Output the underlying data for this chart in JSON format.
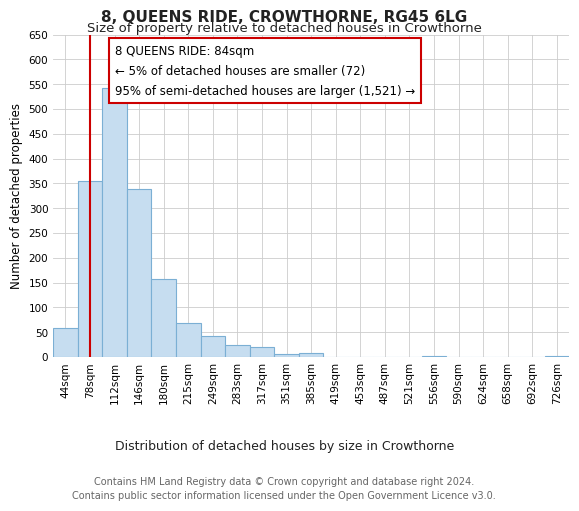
{
  "title": "8, QUEENS RIDE, CROWTHORNE, RG45 6LG",
  "subtitle": "Size of property relative to detached houses in Crowthorne",
  "xlabel": "Distribution of detached houses by size in Crowthorne",
  "ylabel": "Number of detached properties",
  "bar_labels": [
    "44sqm",
    "78sqm",
    "112sqm",
    "146sqm",
    "180sqm",
    "215sqm",
    "249sqm",
    "283sqm",
    "317sqm",
    "351sqm",
    "385sqm",
    "419sqm",
    "453sqm",
    "487sqm",
    "521sqm",
    "556sqm",
    "590sqm",
    "624sqm",
    "658sqm",
    "692sqm",
    "726sqm"
  ],
  "bar_values": [
    58,
    355,
    543,
    338,
    158,
    68,
    42,
    25,
    20,
    7,
    8,
    0,
    0,
    0,
    0,
    2,
    0,
    0,
    0,
    0,
    2
  ],
  "bar_color": "#c6ddf0",
  "bar_edge_color": "#7bafd4",
  "vline_x": 1,
  "vline_color": "#cc0000",
  "ylim": [
    0,
    650
  ],
  "yticks": [
    0,
    50,
    100,
    150,
    200,
    250,
    300,
    350,
    400,
    450,
    500,
    550,
    600,
    650
  ],
  "annotation_title": "8 QUEENS RIDE: 84sqm",
  "annotation_line1": "← 5% of detached houses are smaller (72)",
  "annotation_line2": "95% of semi-detached houses are larger (1,521) →",
  "annotation_box_color": "#ffffff",
  "annotation_box_edge": "#cc0000",
  "footer_line1": "Contains HM Land Registry data © Crown copyright and database right 2024.",
  "footer_line2": "Contains public sector information licensed under the Open Government Licence v3.0.",
  "title_fontsize": 11,
  "subtitle_fontsize": 9.5,
  "xlabel_fontsize": 9,
  "ylabel_fontsize": 8.5,
  "footer_fontsize": 7,
  "tick_fontsize": 7.5
}
